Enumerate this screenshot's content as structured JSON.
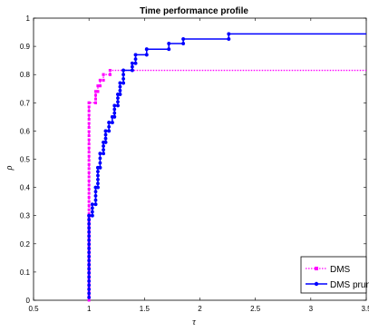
{
  "chart_data": {
    "type": "line",
    "title": "Time performance profile",
    "xlabel": "τ",
    "ylabel": "ρ",
    "xlim": [
      0.5,
      3.5
    ],
    "ylim": [
      0,
      1
    ],
    "x_ticks": [
      0.5,
      1,
      1.5,
      2,
      2.5,
      3,
      3.5
    ],
    "x_tick_labels": [
      "0.5",
      "1",
      "1.5",
      "2",
      "2.5",
      "3",
      "3.5"
    ],
    "y_ticks": [
      0,
      0.1,
      0.2,
      0.3,
      0.4,
      0.5,
      0.6,
      0.7,
      0.8,
      0.9,
      1
    ],
    "y_tick_labels": [
      "0",
      "0.1",
      "0.2",
      "0.3",
      "0.4",
      "0.5",
      "0.6",
      "0.7",
      "0.8",
      "0.9",
      "1"
    ],
    "grid": false,
    "legend_position": "bottom-right",
    "series": [
      {
        "name": "DMS",
        "color": "#ff00ff",
        "line_style": "dotted",
        "marker": "square",
        "points": [
          [
            1.0,
            0.0
          ],
          [
            1.0,
            0.7
          ],
          [
            1.06,
            0.7
          ],
          [
            1.06,
            0.74
          ],
          [
            1.08,
            0.74
          ],
          [
            1.08,
            0.76
          ],
          [
            1.1,
            0.76
          ],
          [
            1.1,
            0.78
          ],
          [
            1.13,
            0.78
          ],
          [
            1.13,
            0.8
          ],
          [
            1.19,
            0.8
          ],
          [
            1.19,
            0.815
          ],
          [
            3.5,
            0.815
          ]
        ]
      },
      {
        "name": "DMS prune",
        "color": "#0000ff",
        "line_style": "solid",
        "marker": "circle",
        "points": [
          [
            1.0,
            0.01
          ],
          [
            1.0,
            0.3
          ],
          [
            1.03,
            0.3
          ],
          [
            1.03,
            0.34
          ],
          [
            1.06,
            0.34
          ],
          [
            1.06,
            0.4
          ],
          [
            1.08,
            0.4
          ],
          [
            1.08,
            0.47
          ],
          [
            1.1,
            0.47
          ],
          [
            1.1,
            0.52
          ],
          [
            1.13,
            0.52
          ],
          [
            1.13,
            0.56
          ],
          [
            1.15,
            0.56
          ],
          [
            1.15,
            0.6
          ],
          [
            1.18,
            0.6
          ],
          [
            1.18,
            0.63
          ],
          [
            1.21,
            0.63
          ],
          [
            1.21,
            0.65
          ],
          [
            1.23,
            0.65
          ],
          [
            1.23,
            0.69
          ],
          [
            1.26,
            0.69
          ],
          [
            1.26,
            0.73
          ],
          [
            1.28,
            0.73
          ],
          [
            1.28,
            0.77
          ],
          [
            1.31,
            0.77
          ],
          [
            1.31,
            0.815
          ],
          [
            1.39,
            0.815
          ],
          [
            1.39,
            0.84
          ],
          [
            1.42,
            0.84
          ],
          [
            1.42,
            0.87
          ],
          [
            1.52,
            0.87
          ],
          [
            1.52,
            0.89
          ],
          [
            1.72,
            0.89
          ],
          [
            1.72,
            0.91
          ],
          [
            1.85,
            0.91
          ],
          [
            1.85,
            0.926
          ],
          [
            2.26,
            0.926
          ],
          [
            2.26,
            0.944
          ],
          [
            3.5,
            0.944
          ]
        ]
      }
    ]
  }
}
